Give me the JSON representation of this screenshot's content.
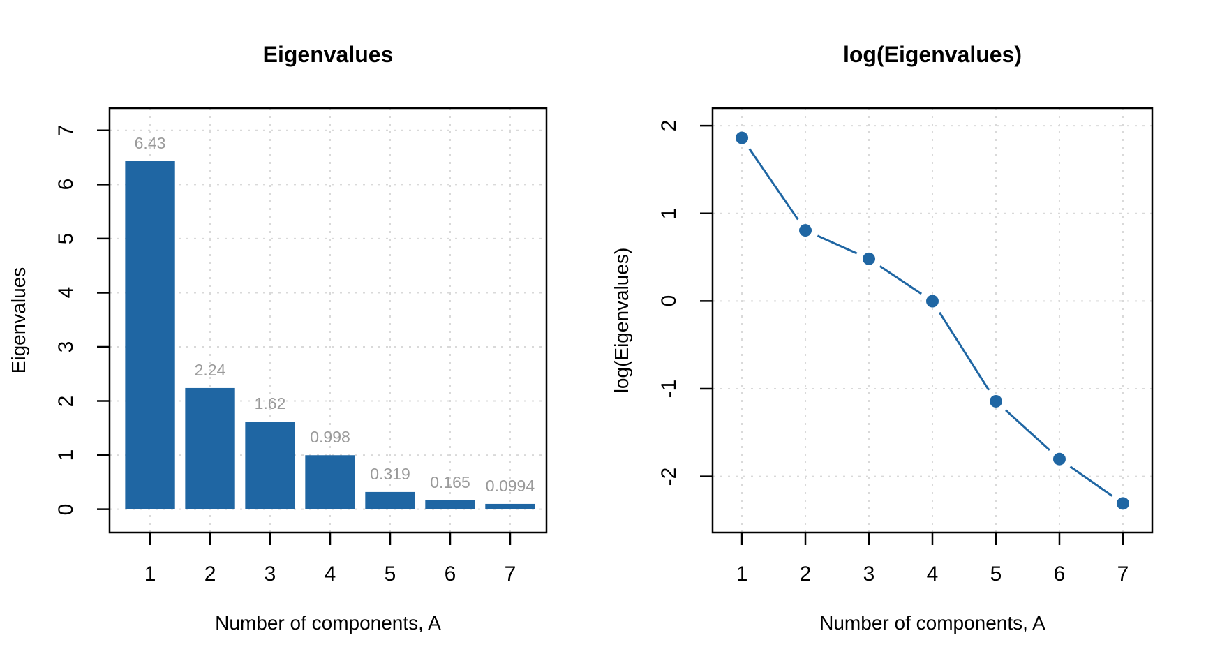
{
  "figure": {
    "background": "#ffffff",
    "text_color": "#000000",
    "grid_color": "#d9d9d9",
    "accent_color": "#1f66a3",
    "value_label_color": "#9a9a9a"
  },
  "chart_data": [
    {
      "type": "bar",
      "title": "Eigenvalues",
      "xlabel": "Number of components, A",
      "ylabel": "Eigenvalues",
      "categories": [
        "1",
        "2",
        "3",
        "4",
        "5",
        "6",
        "7"
      ],
      "values": [
        6.43,
        2.24,
        1.62,
        0.998,
        0.319,
        0.165,
        0.0994
      ],
      "value_labels": [
        "6.43",
        "2.24",
        "1.62",
        "0.998",
        "0.319",
        "0.165",
        "0.0994"
      ],
      "y_ticks": [
        0,
        1,
        2,
        3,
        4,
        5,
        6,
        7
      ],
      "ylim": [
        -0.43,
        7.41
      ],
      "xlim": [
        0.325,
        7.605
      ],
      "bar_width": 0.83,
      "grid": true,
      "grid_style": "dotted",
      "legend": "none",
      "bar_color": "#1f66a3",
      "label_color": "#9a9a9a"
    },
    {
      "type": "line",
      "title": "log(Eigenvalues)",
      "xlabel": "Number of components, A",
      "ylabel": "log(Eigenvalues)",
      "x": [
        1,
        2,
        3,
        4,
        5,
        6,
        7
      ],
      "y": [
        1.861,
        0.806,
        0.482,
        -0.002,
        -1.143,
        -1.802,
        -2.309
      ],
      "x_tick_labels": [
        "1",
        "2",
        "3",
        "4",
        "5",
        "6",
        "7"
      ],
      "y_ticks": [
        -2,
        -1,
        0,
        1,
        2
      ],
      "ylim": [
        -2.64,
        2.2
      ],
      "xlim": [
        0.538,
        7.462
      ],
      "grid": true,
      "grid_style": "dotted",
      "legend": "none",
      "marker": "filled-circle",
      "line_color": "#1f66a3",
      "point_color": "#1f66a3"
    }
  ]
}
